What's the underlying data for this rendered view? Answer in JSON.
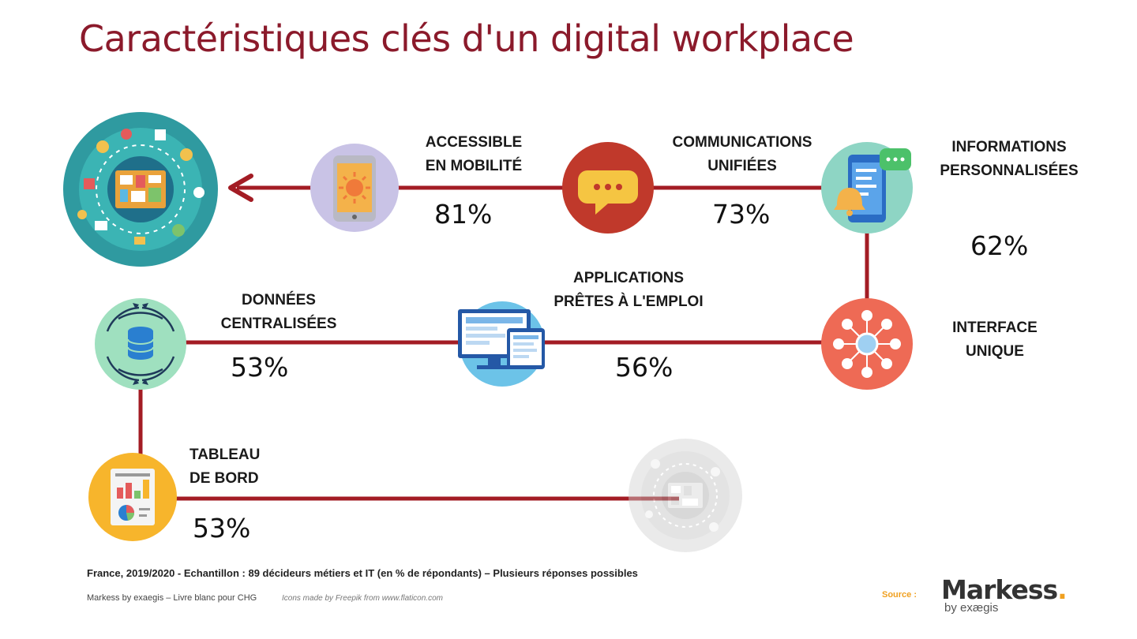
{
  "title": "Caractéristiques clés d'un digital workplace",
  "items": [
    {
      "id": "mobilite",
      "label_line1": "ACCESSIBLE",
      "label_line2": "EN MOBILITÉ",
      "percent": "81%",
      "icon": "phone-sun-icon"
    },
    {
      "id": "communications",
      "label_line1": "COMMUNICATIONS",
      "label_line2": "UNIFIÉES",
      "percent": "73%",
      "icon": "chat-bubble-icon"
    },
    {
      "id": "informations",
      "label_line1": "INFORMATIONS",
      "label_line2": "PERSONNALISÉES",
      "percent": "62%",
      "icon": "smartphone-bell-icon"
    },
    {
      "id": "interface",
      "label_line1": "INTERFACE",
      "label_line2": "UNIQUE",
      "percent": "",
      "icon": "network-hub-icon"
    },
    {
      "id": "applications",
      "label_line1": "APPLICATIONS",
      "label_line2": "PRÊTES À L'EMPLOI",
      "percent": "56%",
      "icon": "desktop-tablet-icon"
    },
    {
      "id": "donnees",
      "label_line1": "DONNÉES",
      "label_line2": "CENTRALISÉES",
      "percent": "53%",
      "icon": "database-cycle-icon"
    },
    {
      "id": "tableau",
      "label_line1": "TABLEAU",
      "label_line2": "DE BORD",
      "percent": "53%",
      "icon": "dashboard-report-icon"
    }
  ],
  "footnote": "France, 2019/2020 - Echantillon : 89 décideurs métiers et IT (en % de répondants) – Plusieurs réponses possibles",
  "credit": "Markess by exaegis – Livre blanc pour CHG",
  "icons_credit": "Icons made by Freepik from www.flaticon.com",
  "source_label": "Source :",
  "brand": {
    "name": "Markess",
    "dot": ".",
    "sub": "by exægis"
  },
  "colors": {
    "title": "#8b1a2b",
    "connector": "#a31c24",
    "accent": "#f0a020"
  }
}
